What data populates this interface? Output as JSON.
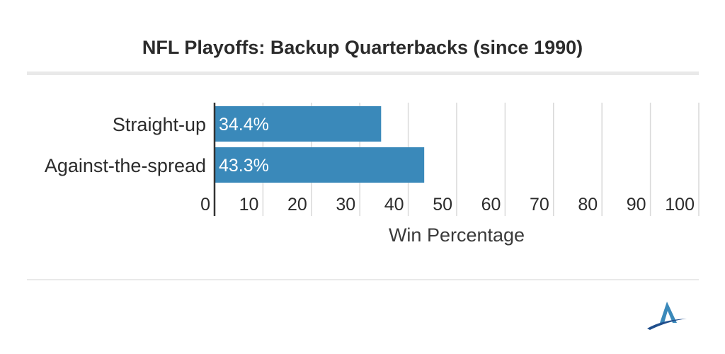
{
  "header": {
    "title": "NFL Playoffs: Backup Quarterbacks (since 1990)"
  },
  "chart_data": {
    "type": "bar",
    "orientation": "horizontal",
    "title": "NFL Playoffs: Backup Quarterbacks (since 1990)",
    "categories": [
      "Straight-up",
      "Against-the-spread"
    ],
    "values": [
      34.4,
      43.3
    ],
    "data_labels": [
      "34.4%",
      "43.3%"
    ],
    "xlabel": "Win Percentage",
    "ylabel": "",
    "xlim": [
      0,
      100
    ],
    "xticks": [
      0,
      10,
      20,
      30,
      40,
      50,
      60,
      70,
      80,
      90,
      100
    ],
    "xtick_labels": [
      "0",
      "10",
      "20",
      "30",
      "40",
      "50",
      "60",
      "70",
      "80",
      "90",
      "100"
    ],
    "grid": true,
    "legend": "none",
    "colors": {
      "bar": "#3a89ba",
      "grid": "#d9d9d9",
      "axis": "#333333"
    }
  },
  "logo": {
    "icon": "brand-logo-icon",
    "colors": [
      "#3a89ba",
      "#1f4e8c"
    ]
  }
}
